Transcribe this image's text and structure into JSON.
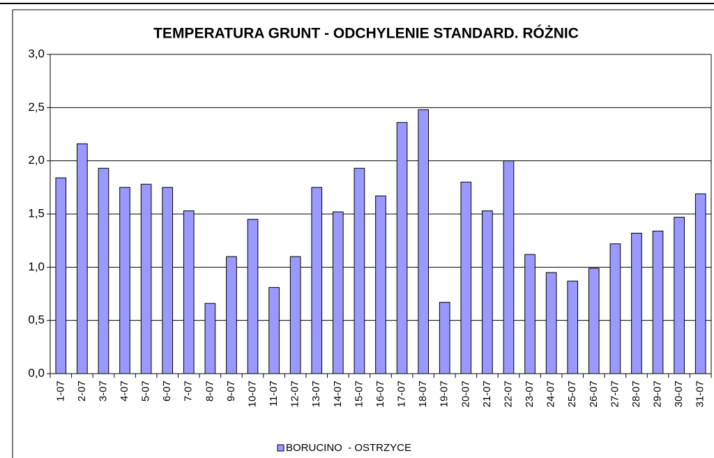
{
  "chart_data": {
    "type": "bar",
    "title": "TEMPERATURA GRUNT - ODCHYLENIE STANDARD. RÓŻNIC",
    "categories": [
      "1-07",
      "2-07",
      "3-07",
      "4-07",
      "5-07",
      "6-07",
      "7-07",
      "8-07",
      "9-07",
      "10-07",
      "11-07",
      "12-07",
      "13-07",
      "14-07",
      "15-07",
      "16-07",
      "17-07",
      "18-07",
      "19-07",
      "20-07",
      "21-07",
      "22-07",
      "23-07",
      "24-07",
      "25-07",
      "26-07",
      "27-07",
      "28-07",
      "29-07",
      "30-07",
      "31-07"
    ],
    "series": [
      {
        "name": "BORUCINO  - OSTRZYCE",
        "color": "#9999ff",
        "values": [
          1.84,
          2.16,
          1.93,
          1.75,
          1.78,
          1.75,
          1.53,
          0.66,
          1.1,
          1.45,
          0.81,
          1.1,
          1.75,
          1.52,
          1.93,
          1.67,
          2.36,
          2.48,
          0.67,
          1.8,
          1.53,
          2.0,
          1.12,
          0.95,
          0.87,
          0.99,
          1.22,
          1.32,
          1.34,
          1.47,
          1.69
        ]
      }
    ],
    "ylim": [
      0,
      3
    ],
    "yticks": [
      {
        "value": 0,
        "label": "0,0"
      },
      {
        "value": 0.5,
        "label": "0,5"
      },
      {
        "value": 1,
        "label": "1,0"
      },
      {
        "value": 1.5,
        "label": "1,5"
      },
      {
        "value": 2,
        "label": "2,0"
      },
      {
        "value": 2.5,
        "label": "2,5"
      },
      {
        "value": 3,
        "label": "3,0"
      }
    ],
    "grid": true,
    "legend": "bottom"
  }
}
